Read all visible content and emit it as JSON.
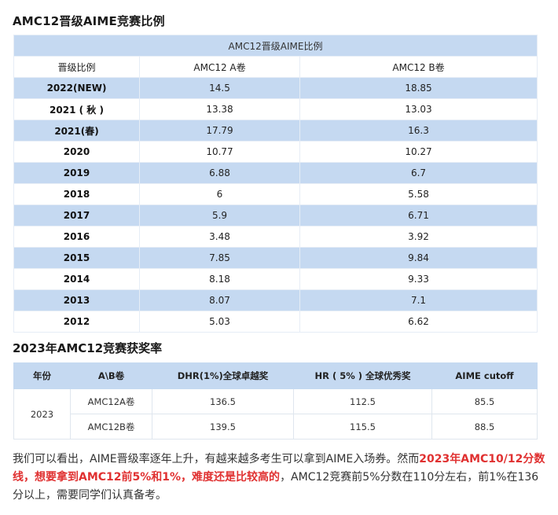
{
  "title1": "AMC12晋级AIME竞赛比例",
  "table1": {
    "caption": "AMC12晋级AIME比例",
    "headers": [
      "晋级比例",
      "AMC12 A卷",
      "AMC12 B卷"
    ],
    "rows": [
      {
        "year": "2022(NEW)",
        "a": "14.5",
        "b": "18.85"
      },
      {
        "year": "2021 ( 秋 )",
        "a": "13.38",
        "b": "13.03"
      },
      {
        "year": "2021(春)",
        "a": "17.79",
        "b": "16.3"
      },
      {
        "year": "2020",
        "a": "10.77",
        "b": "10.27"
      },
      {
        "year": "2019",
        "a": "6.88",
        "b": "6.7"
      },
      {
        "year": "2018",
        "a": "6",
        "b": "5.58"
      },
      {
        "year": "2017",
        "a": "5.9",
        "b": "6.71"
      },
      {
        "year": "2016",
        "a": "3.48",
        "b": "3.92"
      },
      {
        "year": "2015",
        "a": "7.85",
        "b": "9.84"
      },
      {
        "year": "2014",
        "a": "8.18",
        "b": "9.33"
      },
      {
        "year": "2013",
        "a": "8.07",
        "b": "7.1"
      },
      {
        "year": "2012",
        "a": "5.03",
        "b": "6.62"
      }
    ]
  },
  "title2": "2023年AMC12竞赛获奖率",
  "table2": {
    "headers": [
      "年份",
      "A\\B卷",
      "DHR(1%)全球卓越奖",
      "HR ( 5% ) 全球优秀奖",
      "AIME  cutoff"
    ],
    "year": "2023",
    "rows": [
      {
        "paper": "AMC12A卷",
        "dhr": "136.5",
        "hr": "112.5",
        "aime": "85.5"
      },
      {
        "paper": "AMC12B卷",
        "dhr": "139.5",
        "hr": "115.5",
        "aime": "88.5"
      }
    ]
  },
  "paragraph": {
    "part1": "我们可以看出，AIME晋级率逐年上升，有越来越多考生可以拿到AIME入场券。然而",
    "red": "2023年AMC10/12分数线，想要拿到AMC12前5%和1%，难度还是比较高的",
    "part2": "，AMC12竞赛前5%分数在110分左右，前1%在136分以上，需要同学们认真备考。"
  },
  "colors": {
    "header_blue": "#c5d9f1",
    "highlight_red": "#e03131"
  }
}
